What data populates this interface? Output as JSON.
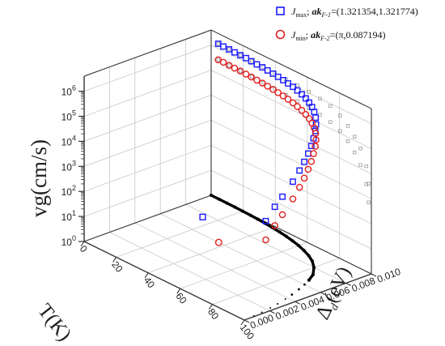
{
  "chart_data": {
    "type": "scatter",
    "projection": "3d",
    "axes": {
      "x": {
        "label": "T(K)",
        "range": [
          0,
          100
        ],
        "ticks": [
          "0",
          "20",
          "40",
          "60",
          "80",
          "100"
        ]
      },
      "y": {
        "label_main": "Δ",
        "label_sub": "d",
        "label_unit": "(eV)",
        "range": [
          0.0,
          0.01
        ],
        "ticks": [
          "0.000",
          "0.002",
          "0.004",
          "0.006",
          "0.008",
          "0.010"
        ]
      },
      "z": {
        "label_main": "vg",
        "label_unit": "(cm/s)",
        "scale": "log",
        "range_exp": [
          0,
          6.6
        ],
        "ticks": [
          {
            "base": "10",
            "exp": "0"
          },
          {
            "base": "10",
            "exp": "1"
          },
          {
            "base": "10",
            "exp": "2"
          },
          {
            "base": "10",
            "exp": "3"
          },
          {
            "base": "10",
            "exp": "4"
          },
          {
            "base": "10",
            "exp": "5"
          },
          {
            "base": "10",
            "exp": "6"
          }
        ]
      }
    },
    "legend": {
      "placement": "top-right",
      "entries": [
        {
          "marker": "square",
          "color": "#1a1aff",
          "J": "J",
          "J_sub": "max",
          "sep": "; ",
          "ak": "ak",
          "ak_sub": "F-1",
          "value": "=(1.321354,1.321774)"
        },
        {
          "marker": "circle",
          "color": "#e02020",
          "J": "J",
          "J_sub": "min",
          "sep": "; ",
          "ak": "ak",
          "ak_sub": "F-2",
          "value": "=(π,0.087194)"
        }
      ]
    },
    "series": [
      {
        "name": "Jmax; akF-1=(1.321354,1.321774)",
        "marker": "square",
        "color": "#1a1aff",
        "T": [
          4.4,
          7.6,
          11.2,
          14.7,
          18.3,
          21.9,
          25.4,
          29.0,
          32.6,
          36.1,
          39.7,
          43.2,
          46.8,
          50.3,
          53.9,
          57.4,
          61.0,
          64.5,
          67.9,
          71.2,
          74.4,
          77.5,
          80.5,
          83.0,
          85.3,
          87.5,
          89.5,
          91.4,
          93.2,
          95.0,
          96.8,
          97.6,
          98.3
        ],
        "delta": [
          0.01,
          0.01,
          0.01,
          0.00999,
          0.00999,
          0.00998,
          0.00996,
          0.00994,
          0.00992,
          0.00989,
          0.00986,
          0.00982,
          0.00977,
          0.00971,
          0.00964,
          0.00955,
          0.00944,
          0.00931,
          0.00915,
          0.00896,
          0.00873,
          0.00845,
          0.0081,
          0.00773,
          0.0073,
          0.00685,
          0.00635,
          0.0058,
          0.0052,
          0.00445,
          0.0034,
          0.0027,
          0.0019
        ],
        "log_vg": [
          6.19,
          6.18,
          6.18,
          6.17,
          6.17,
          6.17,
          6.16,
          6.15,
          6.15,
          6.14,
          6.13,
          6.12,
          6.11,
          6.1,
          6.09,
          6.07,
          6.05,
          6.02,
          5.99,
          5.95,
          5.9,
          5.82,
          5.71,
          5.59,
          5.45,
          5.3,
          5.15,
          4.98,
          4.8,
          4.55,
          4.2,
          3.95,
          3.55
        ]
      },
      {
        "name": "Jmin; akF-2=(π,0.087194)",
        "marker": "circle",
        "color": "#e02020",
        "T": [
          4.4,
          7.6,
          11.2,
          14.7,
          18.3,
          21.9,
          25.4,
          29.0,
          32.6,
          36.1,
          39.7,
          43.2,
          46.8,
          50.3,
          53.9,
          57.4,
          61.0,
          64.5,
          67.9,
          71.2,
          74.4,
          77.5,
          80.5,
          83.0,
          85.3,
          87.5,
          89.5,
          91.4,
          93.2,
          95.0,
          96.8,
          97.6,
          98.3
        ],
        "delta": [
          0.01,
          0.01,
          0.01,
          0.00999,
          0.00999,
          0.00998,
          0.00996,
          0.00994,
          0.00992,
          0.00989,
          0.00986,
          0.00982,
          0.00977,
          0.00971,
          0.00964,
          0.00955,
          0.00944,
          0.00931,
          0.00915,
          0.00896,
          0.00873,
          0.00845,
          0.0081,
          0.00773,
          0.0073,
          0.00685,
          0.00635,
          0.0058,
          0.0052,
          0.00445,
          0.0034,
          0.0027,
          0.0019
        ],
        "log_vg": [
          5.55,
          5.55,
          5.54,
          5.54,
          5.54,
          5.53,
          5.53,
          5.52,
          5.52,
          5.51,
          5.5,
          5.49,
          5.48,
          5.47,
          5.45,
          5.43,
          5.41,
          5.38,
          5.35,
          5.31,
          5.26,
          5.19,
          5.09,
          4.98,
          4.84,
          4.68,
          4.52,
          4.33,
          4.13,
          3.86,
          3.48,
          3.2,
          2.8
        ]
      }
    ],
    "projections": {
      "wall_color": "#999999",
      "floor_color": "#000000",
      "wall_series": [
        {
          "T": [
            4.4,
            11.2,
            18.3,
            25.4,
            32.6,
            39.7,
            46.8,
            53.9,
            61.0,
            67.9,
            74.4,
            80.5,
            85.3,
            89.5,
            93.2,
            96.8,
            98.3
          ],
          "log_vg": [
            6.19,
            6.18,
            6.17,
            6.16,
            6.15,
            6.13,
            6.11,
            6.09,
            6.05,
            5.99,
            5.9,
            5.71,
            5.45,
            5.15,
            4.8,
            4.2,
            3.55
          ]
        },
        {
          "T": [
            4.4,
            11.2,
            18.3,
            25.4,
            32.6,
            39.7,
            46.8,
            53.9,
            61.0,
            67.9,
            74.4,
            80.5,
            85.3,
            89.5,
            93.2,
            96.8,
            98.3
          ],
          "log_vg": [
            5.55,
            5.54,
            5.54,
            5.53,
            5.52,
            5.5,
            5.48,
            5.45,
            5.41,
            5.35,
            5.26,
            5.09,
            4.84,
            4.52,
            4.13,
            3.48,
            2.8
          ]
        }
      ],
      "floor_curve": {
        "T": [
          0,
          5,
          10,
          15,
          20,
          25,
          30,
          35,
          40,
          45,
          50,
          55,
          60,
          65,
          70,
          75,
          80,
          85,
          88,
          90,
          92,
          94,
          95.5,
          97,
          98,
          99,
          99.6
        ],
        "delta": [
          0.01,
          0.01,
          0.00999,
          0.00998,
          0.00996,
          0.00994,
          0.0099,
          0.00985,
          0.00979,
          0.00971,
          0.00961,
          0.00948,
          0.00932,
          0.00911,
          0.00885,
          0.0085,
          0.008,
          0.0073,
          0.0066,
          0.006,
          0.0053,
          0.0045,
          0.0038,
          0.003,
          0.0023,
          0.0015,
          0.0008
        ]
      }
    },
    "outliers": [
      {
        "series": 0,
        "T": 74,
        "delta": 0.0,
        "log_vg": 3.3
      },
      {
        "series": 1,
        "T": 84,
        "delta": 0.0,
        "log_vg": 2.6
      }
    ]
  }
}
